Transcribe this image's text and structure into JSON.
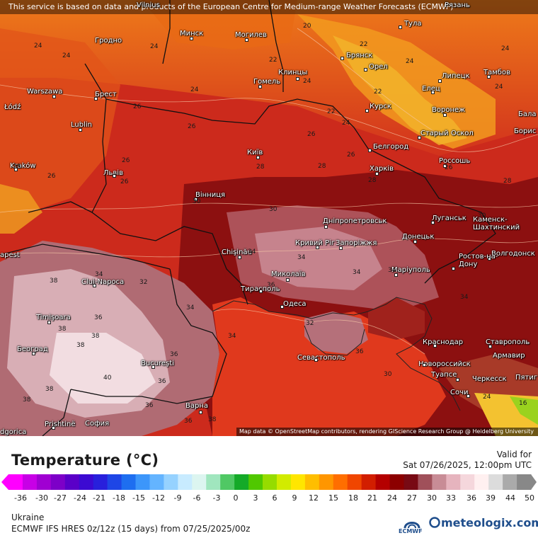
{
  "attribution_top": "This service is based on data and products of the European Centre for Medium-range Weather Forecasts (ECMWF)",
  "attribution_bottom": "Map data © OpenStreetMap contributors, rendering GIScience Research Group @ Heidelberg University",
  "legend": {
    "title": "Temperature (°C)",
    "valid_label": "Valid for",
    "valid_time": "Sat 07/26/2025, 12:00pm UTC",
    "ticks": [
      "-36",
      "-30",
      "-27",
      "-24",
      "-21",
      "-18",
      "-15",
      "-12",
      "-9",
      "-6",
      "-3",
      "0",
      "3",
      "6",
      "9",
      "12",
      "15",
      "18",
      "21",
      "24",
      "27",
      "30",
      "33",
      "36",
      "39",
      "44",
      "50"
    ],
    "colors": [
      "#ff00ff",
      "#c800e6",
      "#a000d2",
      "#7d00c8",
      "#5a00c8",
      "#3c0ad2",
      "#2820dc",
      "#1e46e6",
      "#1e6ef0",
      "#3c96fa",
      "#64b4ff",
      "#96d2ff",
      "#c8ebff",
      "#dcf5f0",
      "#a0e6be",
      "#50c864",
      "#14aa28",
      "#50c800",
      "#96dc00",
      "#d2eb00",
      "#ffe600",
      "#ffbe00",
      "#ff9600",
      "#ff6e00",
      "#f04600",
      "#d21e00",
      "#b40000",
      "#8c0000",
      "#780a14",
      "#a0505a",
      "#c88c96",
      "#e6b4be",
      "#f5d7dc",
      "#fff0f0",
      "#dcdcdc",
      "#aaaaaa",
      "#888888"
    ]
  },
  "region": "Ukraine",
  "model": "ECMWF IFS HRES 0z/12z (15 days) from  07/25/2025/00z",
  "logos": {
    "ecmwf": "ECMWF",
    "meteologix": "meteologix.com"
  },
  "cities": [
    {
      "name": "Vilnius",
      "label": "Vilnius"
    },
    {
      "name": "Рязань",
      "label": "Рязань"
    },
    {
      "name": "Тула",
      "label": "Тула"
    },
    {
      "name": "Минск",
      "label": "Минск"
    },
    {
      "name": "Гродно",
      "label": "Гродно"
    },
    {
      "name": "Могилев",
      "label": "Могилев"
    },
    {
      "name": "Брянск",
      "label": "Брянск"
    },
    {
      "name": "Орел",
      "label": "Орел"
    },
    {
      "name": "Липецк",
      "label": "Липецк"
    },
    {
      "name": "Тамбов",
      "label": "Тамбов"
    },
    {
      "name": "Warszawa",
      "label": "Warszawa"
    },
    {
      "name": "Брест",
      "label": "Брест"
    },
    {
      "name": "Гомель",
      "label": "Гомель"
    },
    {
      "name": "Клинцы",
      "label": "Клинцы"
    },
    {
      "name": "Елец",
      "label": "Елец"
    },
    {
      "name": "Łódź",
      "label": "Łódź"
    },
    {
      "name": "Курск",
      "label": "Курск"
    },
    {
      "name": "Воронеж",
      "label": "Воронеж"
    },
    {
      "name": "Бала",
      "label": "Бала"
    },
    {
      "name": "Lublin",
      "label": "Lublin"
    },
    {
      "name": "Старый Оскол",
      "label": "Старый Оскол"
    },
    {
      "name": "Борис",
      "label": "Борис"
    },
    {
      "name": "Белгород",
      "label": "Белгород"
    },
    {
      "name": "Київ",
      "label": "Київ"
    },
    {
      "name": "Kraków",
      "label": "Kraków"
    },
    {
      "name": "Россошь",
      "label": "Россошь"
    },
    {
      "name": "Львів",
      "label": "Львів"
    },
    {
      "name": "Харків",
      "label": "Харків"
    },
    {
      "name": "Вінниця",
      "label": "Вінниця"
    },
    {
      "name": "Луганськ",
      "label": "Луганськ"
    },
    {
      "name": "Дніпропетровськ",
      "label": "Дніпропетровськ"
    },
    {
      "name": "Каменск-Шахтинский",
      "label": "Каменск-\nШахтинский"
    },
    {
      "name": "Кривий Ріг",
      "label": "Кривий Ріг"
    },
    {
      "name": "Запоріжжя",
      "label": "Запоріжжя"
    },
    {
      "name": "Донецьк",
      "label": "Донецьк"
    },
    {
      "name": "Budapest",
      "label": "apest"
    },
    {
      "name": "Волгодонск",
      "label": "Волгодонск"
    },
    {
      "name": "Ростов-на-Дону",
      "label": "Ростов-на-\nДону"
    },
    {
      "name": "Chişinău",
      "label": "Chişinău"
    },
    {
      "name": "Миколаїв",
      "label": "Миколаїв"
    },
    {
      "name": "Маріуполь",
      "label": "Маріуполь"
    },
    {
      "name": "Cluj-Napoca",
      "label": "Cluj-Napoca"
    },
    {
      "name": "Тирасполь",
      "label": "Тирасполь"
    },
    {
      "name": "Одеса",
      "label": "Одеса"
    },
    {
      "name": "Timişoara",
      "label": "Timişoara"
    },
    {
      "name": "Краснодар",
      "label": "Краснодар"
    },
    {
      "name": "Ставрополь",
      "label": "Ставрополь"
    },
    {
      "name": "Београд",
      "label": "Београд"
    },
    {
      "name": "Севастополь",
      "label": "Севастополь"
    },
    {
      "name": "Армавир",
      "label": "Армавир"
    },
    {
      "name": "Новороссийск",
      "label": "Новороссийск"
    },
    {
      "name": "Bucureşti",
      "label": "Bucureşti"
    },
    {
      "name": "Туапсе",
      "label": "Туапсе"
    },
    {
      "name": "Черкесск",
      "label": "Черкесск"
    },
    {
      "name": "Пятиг",
      "label": "Пятиг"
    },
    {
      "name": "Сочи",
      "label": "Сочи"
    },
    {
      "name": "Варна",
      "label": "Варна"
    },
    {
      "name": "Prishtinë",
      "label": "Prishtinë"
    },
    {
      "name": "София",
      "label": "София"
    },
    {
      "name": "Podgorica",
      "label": "dgorica"
    }
  ],
  "isotherm_labels": [
    "24",
    "24",
    "20",
    "24",
    "22",
    "22",
    "24",
    "24",
    "24",
    "24",
    "22",
    "22",
    "24",
    "24",
    "26",
    "26",
    "26",
    "26",
    "26",
    "28",
    "28",
    "28",
    "26",
    "26",
    "26",
    "28",
    "28",
    "30",
    "30",
    "30",
    "34",
    "34",
    "36",
    "34",
    "34",
    "38",
    "34",
    "36",
    "32",
    "34",
    "38",
    "38",
    "38",
    "36",
    "40",
    "36",
    "38",
    "36",
    "38",
    "36",
    "38",
    "34",
    "32",
    "36",
    "34",
    "30",
    "24",
    "16"
  ]
}
